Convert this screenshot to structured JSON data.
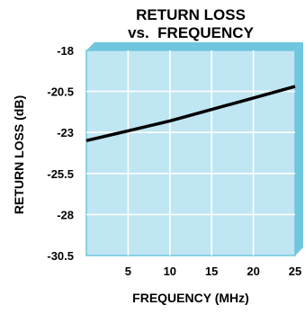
{
  "chart_data": {
    "type": "line",
    "title": "RETURN LOSS",
    "subtitle": "vs.  FREQUENCY",
    "xlabel": "FREQUENCY (MHz)",
    "ylabel": "RETURN LOSS (dB)",
    "xlim": [
      0,
      25
    ],
    "ylim": [
      -30.5,
      -18
    ],
    "x_ticks": [
      5,
      10,
      15,
      20,
      25
    ],
    "x_tick_labels": [
      "5",
      "10",
      "15",
      "20",
      "25"
    ],
    "y_ticks": [
      -18,
      -20.5,
      -23,
      -25.5,
      -28,
      -30.5
    ],
    "y_tick_labels": [
      "-18",
      "-20.5",
      "-23",
      "-25.5",
      "-28",
      "-30.5"
    ],
    "grid": true,
    "series": [
      {
        "x": [
          0,
          5,
          10,
          15,
          20,
          25
        ],
        "y": [
          -23.5,
          -22.9,
          -22.3,
          -21.6,
          -20.9,
          -20.2
        ]
      }
    ],
    "colors": {
      "plot_background": "#bfe6f2",
      "plot_border": "#6fc6de",
      "grid": "#ffffff",
      "line": "#000000"
    }
  }
}
